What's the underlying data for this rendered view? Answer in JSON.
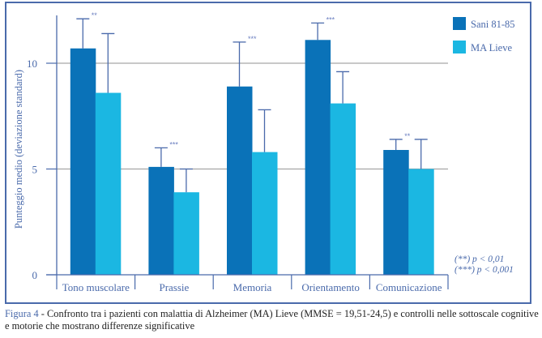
{
  "chart_data": {
    "type": "bar",
    "title": "",
    "xlabel": "",
    "ylabel": "Punteggio medio (deviazione standard)",
    "ylim": [
      0,
      12.5
    ],
    "yticks": [
      0,
      5,
      10
    ],
    "grid": true,
    "legend_position": "top-right",
    "categories": [
      "Tono muscolare",
      "Prassie",
      "Memoria",
      "Orientamento",
      "Comunicazione"
    ],
    "series": [
      {
        "name": "Sani 81-85",
        "color": "#0a72b8",
        "values": [
          10.7,
          5.1,
          8.9,
          11.1,
          5.9
        ],
        "error_upper": [
          12.1,
          6.0,
          11.0,
          11.9,
          6.4
        ]
      },
      {
        "name": "MA Lieve",
        "color": "#1bb7e2",
        "values": [
          8.6,
          3.9,
          5.8,
          8.1,
          5.0
        ],
        "error_upper": [
          11.4,
          5.0,
          7.8,
          9.6,
          6.4
        ]
      }
    ],
    "significance": [
      "**",
      "***",
      "***",
      "***",
      "**"
    ],
    "significance_notes": [
      "(**) p < 0,01",
      "(***) p < 0,001"
    ]
  },
  "caption": {
    "figure_label": "Figura 4",
    "text": " - Confronto tra i pazienti con malattia di Alzheimer (MA) Lieve (MMSE = 19,51-24,5) e controlli nelle sottoscale cognitive e motorie che mostrano differenze significative"
  },
  "colors": {
    "frame": "#4a6aab",
    "axis": "#4a6aab",
    "grid": "#a6a6a6",
    "text": "#4a6aab"
  }
}
